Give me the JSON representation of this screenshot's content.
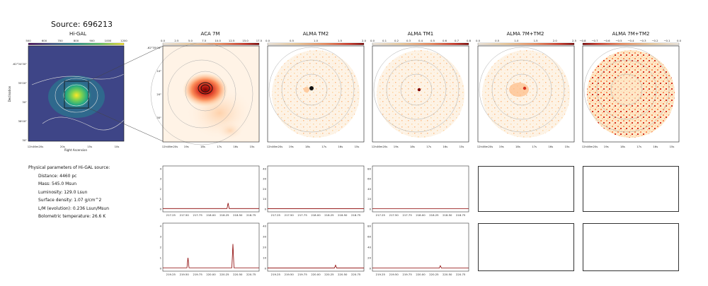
{
  "figure": {
    "source_title": "Source: 696213",
    "panels": {
      "higal": {
        "title": "Hi-GAL",
        "cbar_ticks": [
          "500",
          "600",
          "700",
          "800",
          "900",
          "1000",
          "1200"
        ],
        "xticks": [
          "12h46m20s",
          "20s",
          "15s",
          "10s"
        ],
        "yticks": [
          "-62°34'30\"",
          "35'00\"",
          "30\"",
          "36'00\"",
          "30\""
        ],
        "xlabel": "Right Ascension",
        "ylabel": "Declination"
      },
      "aca7m": {
        "title": "ACA 7M",
        "cbar_ticks": [
          "0.0",
          "2.5",
          "5.0",
          "7.5",
          "10.0",
          "12.5",
          "15.0",
          "17.5"
        ],
        "xticks": [
          "12h46m20s",
          "19s",
          "18s",
          "17s",
          "16s",
          "15s"
        ],
        "yticks": [
          "-62°35'00\"",
          "10\"",
          "20\"",
          "30\""
        ]
      },
      "tm2": {
        "title": "ALMA TM2",
        "cbar_ticks": [
          "0.0",
          "0.5",
          "1.0",
          "1.5",
          "2.0"
        ],
        "xticks": [
          "12h46m20s",
          "19s",
          "18s",
          "17s",
          "16s",
          "15s"
        ]
      },
      "tm1": {
        "title": "ALMA TM1",
        "cbar_ticks": [
          "0.0",
          "0.1",
          "0.2",
          "0.3",
          "0.4",
          "0.5",
          "0.6",
          "0.7",
          "0.8"
        ],
        "xticks": [
          "12h46m20s",
          "19s",
          "18s",
          "17s",
          "16s",
          "15s"
        ]
      },
      "tm7m2": {
        "title": "ALMA 7M+TM2",
        "cbar_ticks": [
          "0.0",
          "0.5",
          "1.0",
          "1.5",
          "2.0",
          "2.5"
        ],
        "xticks": [
          "12h46m20s",
          "19s",
          "18s",
          "17s",
          "16s",
          "15s"
        ]
      },
      "tm7m2b": {
        "title": "ALMA 7M+TM2",
        "cbar_ticks": [
          "−0.8",
          "−0.7",
          "−0.6",
          "−0.5",
          "−0.4",
          "−0.3",
          "−0.2",
          "−0.1",
          "0.0"
        ],
        "xticks": [
          "12h46m20s",
          "19s",
          "18s",
          "17s",
          "16s",
          "15s"
        ]
      }
    },
    "params": {
      "header": "Physical parameters of Hi-GAL source:",
      "lines": [
        "Distance: 4460 pc",
        "Mass: 545.0 Msun",
        "Luminosity: 129.0 Lsun",
        "Surface density: 1.07 g/cm^2",
        "L/M (evolution): 0.236 Lsun/Msun",
        "Bolometric temperature: 26.6 K"
      ]
    },
    "spectra": {
      "row1": {
        "xticks": [
          "217.25",
          "217.50",
          "217.75",
          "218.00",
          "218.25",
          "218.50",
          "218.75"
        ],
        "aca_yticks": [
          "0",
          "1",
          "2",
          "3",
          "4"
        ],
        "tm2_yticks": [
          "0",
          "10",
          "20",
          "30",
          "40"
        ],
        "tm1_yticks": [
          "0",
          "20",
          "40",
          "60",
          "80"
        ]
      },
      "row2": {
        "xticks": [
          "219.25",
          "219.50",
          "219.75",
          "220.00",
          "220.25",
          "220.50",
          "220.75"
        ],
        "aca_yticks": [
          "0",
          "1",
          "2",
          "3",
          "4"
        ],
        "tm2_yticks": [
          "0",
          "10",
          "20",
          "30",
          "40"
        ],
        "tm1_yticks": [
          "0",
          "20",
          "40",
          "60",
          "80"
        ]
      }
    }
  },
  "chart_data": [
    {
      "type": "line",
      "panel": "ACA 7M spw row 1",
      "x_range": [
        217.1,
        218.9
      ],
      "ylim": [
        0,
        4
      ],
      "x": [
        217.1,
        218.3,
        218.32,
        218.34,
        218.9
      ],
      "values": [
        0.05,
        0.05,
        0.6,
        0.05,
        0.05
      ]
    },
    {
      "type": "line",
      "panel": "ALMA TM2 spw row 1",
      "x_range": [
        217.1,
        218.9
      ],
      "ylim": [
        0,
        40
      ],
      "x": [
        217.1,
        218.9
      ],
      "values": [
        0.3,
        0.3
      ]
    },
    {
      "type": "line",
      "panel": "ALMA TM1 spw row 1",
      "x_range": [
        217.1,
        218.9
      ],
      "ylim": [
        0,
        80
      ],
      "x": [
        217.1,
        218.9
      ],
      "values": [
        0.5,
        0.5
      ]
    },
    {
      "type": "line",
      "panel": "ACA 7M spw row 2",
      "x_range": [
        219.1,
        220.9
      ],
      "ylim": [
        0,
        4
      ],
      "x": [
        219.1,
        219.55,
        219.57,
        219.59,
        220.39,
        220.41,
        220.43,
        220.9
      ],
      "values": [
        0.05,
        0.05,
        1.0,
        0.05,
        0.05,
        2.3,
        0.05,
        0.05
      ]
    },
    {
      "type": "line",
      "panel": "ALMA TM2 spw row 2",
      "x_range": [
        219.1,
        220.9
      ],
      "ylim": [
        0,
        40
      ],
      "x": [
        219.1,
        220.35,
        220.37,
        220.39,
        220.9
      ],
      "values": [
        0.3,
        0.3,
        3.0,
        0.3,
        0.3
      ]
    },
    {
      "type": "line",
      "panel": "ALMA TM1 spw row 2",
      "x_range": [
        219.1,
        220.9
      ],
      "ylim": [
        0,
        80
      ],
      "x": [
        219.1,
        220.35,
        220.37,
        220.39,
        220.9
      ],
      "values": [
        0.5,
        0.5,
        5.0,
        0.5,
        0.5
      ]
    }
  ]
}
